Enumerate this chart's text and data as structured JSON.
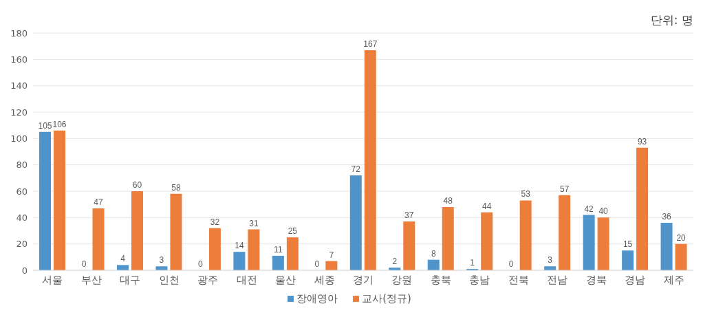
{
  "chart_data": {
    "type": "bar",
    "categories": [
      "서울",
      "부산",
      "대구",
      "인천",
      "광주",
      "대전",
      "울산",
      "세종",
      "경기",
      "강원",
      "충북",
      "충남",
      "전북",
      "전남",
      "경북",
      "경남",
      "제주"
    ],
    "series": [
      {
        "name": "장애영아",
        "color": "#4f95cb",
        "values": [
          105,
          0,
          4,
          3,
          0,
          14,
          11,
          0,
          72,
          2,
          8,
          1,
          0,
          3,
          42,
          15,
          36
        ]
      },
      {
        "name": "교사(정규)",
        "color": "#ed7d3a",
        "values": [
          106,
          47,
          60,
          58,
          32,
          31,
          25,
          7,
          167,
          37,
          48,
          44,
          53,
          57,
          40,
          93,
          20
        ]
      }
    ],
    "ylim": [
      0,
      180
    ],
    "yticks": [
      0,
      20,
      40,
      60,
      80,
      100,
      120,
      140,
      160,
      180
    ],
    "grid": "y",
    "legend": "bottom",
    "data_labels": true,
    "annotations": [
      "단위: 명"
    ]
  }
}
